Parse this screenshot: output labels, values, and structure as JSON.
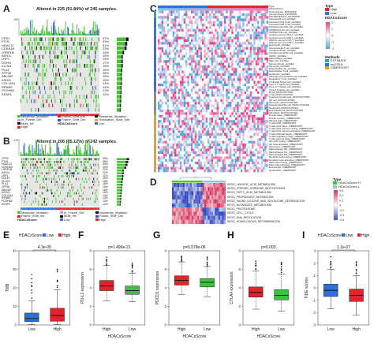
{
  "panels": {
    "A": {
      "letter": "A",
      "title": "Altered in 225 (91.84%) of 245 samples.",
      "ymax": "150",
      "genes": [
        "CPS1",
        "FTH1",
        "HDAC11",
        "CDKN1B",
        "LRRP1B",
        "ASH1L",
        "LRP1",
        "DOHH",
        "KLHL6",
        "PLA1",
        "ZFP36",
        "ABLIM2",
        "ASH2L",
        "COL11A1",
        "RENBP",
        "PCDHB2",
        "KEAP1"
      ],
      "pcts": [
        "37%",
        "33%",
        "31%",
        "23%",
        "19%",
        "19%",
        "19%",
        "17%",
        "16%",
        "16%",
        "16%",
        "15%",
        "15%",
        "14%",
        "14%",
        "13%",
        "12%"
      ],
      "legend": [
        "Missense_Mutation",
        "Frame_Shift_Ins",
        "Nonsense_Mutation",
        "In_Frame_Del",
        "Frame_Shift_Del",
        "Translation_Start_Site",
        "Multi_Hit",
        "HDACsScore",
        "Low",
        "High"
      ]
    },
    "B": {
      "letter": "B",
      "title": "Altered in 206 (85.12%) of 242 samples.",
      "ymax": "176",
      "genes": [
        "CPS1",
        "FTH1",
        "HDAC11",
        "CDKN1B",
        "LRRP1B",
        "ASH1L",
        "LRP1",
        "DOHH",
        "KLHL6",
        "PLA1",
        "ZFP36",
        "ABLIM2",
        "ASH2L",
        "COL11A1",
        "RENBP",
        "PCDHB2",
        "KEAP1"
      ],
      "pcts": [
        "39%",
        "36%",
        "34%",
        "30%",
        "22%",
        "22%",
        "21%",
        "20%",
        "18%",
        "18%",
        "16%",
        "16%",
        "15%",
        "14%",
        "14%",
        "13%",
        "12%"
      ],
      "legend": [
        "Missense_Mutation",
        "In_Frame_Del",
        "Nonsense_Mutation",
        "Frame_Shift_Ins",
        "Multi_Hit",
        "Frame_Shift_Del",
        "HDACsScore",
        "Low",
        "High"
      ]
    },
    "C": {
      "letter": "C",
      "legend_type": "Type",
      "legend_high": "High",
      "legend_low": "Low",
      "legend_score": "HDACsScore",
      "legend_methods": "Methods",
      "methods": [
        "ESTIMATE",
        "ssGSEA",
        "CIBERSORT"
      ],
      "scale": [
        "2",
        "1",
        "0",
        "-1",
        "-2"
      ],
      "rows": [
        "Type",
        "HDACsScore",
        "StromalScore_ESTIMATE",
        "ImmuneScore_ESTIMATE",
        "ESTIMATEScore_ESTIMATE",
        "Activated.B.cell_ssGSEA",
        "Activated.CD4.T.cell_ssGSEA",
        "Activated.CD8.T.cell_ssGSEA",
        "Activated.dendritic.cell_ssGSEA",
        "CD56bright.NK.cell_ssGSEA",
        "CD56dim.NK.cell_ssGSEA",
        "Central.memory.CD4.T_ssGSEA",
        "Central.memory.CD8.T_ssGSEA",
        "Effector.memory.CD4.T_ssGSEA",
        "Effector.memory.CD8.T_ssGSEA",
        "Eosinophil_ssGSEA",
        "Gamma.delta.T.cell_ssGSEA",
        "Immature.B.cell_ssGSEA",
        "Immature.dendritic.cell_ssGSEA",
        "MDSC_ssGSEA",
        "Macrophage_ssGSEA",
        "Mast.cell_ssGSEA",
        "Memory.B.cell_ssGSEA",
        "Monocyte_ssGSEA",
        "Natural.killer.cell_ssGSEA",
        "Natural.killer.T.cell_ssGSEA",
        "Neutrophil_ssGSEA",
        "Plasmacytoid.dendritic.cell_ssGSEA",
        "Regulatory.T.cell_ssGSEA",
        "T.follicular.helper.cell_ssGSEA",
        "Type.1.T.helper.cell_ssGSEA",
        "Type.17.T.helper.cell_ssGSEA",
        "Type.2.T.helper.cell_ssGSEA",
        "B.cell_MCPCOUNTER",
        "T.cell_MCPCOUNTER",
        "Cytotoxic.lymphocyte_MCPCOUNTER",
        "NK.cell_MCPCOUNTER",
        "Monocyte_MCPCOUNTER",
        "Myeloid.dendritic.cell_MCPCOUNTER",
        "Neutrophil_MCPCOUNTER",
        "Endothelial.cell_MCPCOUNTER",
        "Fibroblast_MCPCOUNTER",
        "B.cells.naive_CIBERSORT",
        "B.cells.memory_CIBERSORT",
        "Plasma.cells_CIBERSORT",
        "T.cells.CD8_CIBERSORT",
        "T.cells.CD4.naive_CIBERSORT",
        "T.cells.CD4.memory.resting_CIBERSORT",
        "T.cells.CD4.memory.activated_CIBERSORT",
        "T.cells.follicular.helper_CIBERSORT",
        "T.cells.regulatory.Tregs_CIBERSORT",
        "T.cells.gamma.delta_CIBERSORT",
        "NK.cells.resting_CIBERSORT",
        "NK.cells.activated_CIBERSORT",
        "Monocytes_CIBERSORT",
        "Macrophages.M0_CIBERSORT",
        "Macrophages.M1_CIBERSORT",
        "Macrophages.M2_CIBERSORT",
        "Dendritic.cells.resting_CIBERSORT",
        "Dendritic.cells.activated_CIBERSORT",
        "Mast.cells.resting_CIBERSORT",
        "Mast.cells.activated_CIBERSORT",
        "Eosinophils_CIBERSORT",
        "Neutrophils_CIBERSORT"
      ]
    },
    "D": {
      "letter": "D",
      "legend_type": "Type",
      "legend_items": [
        "HDACsScore.H",
        "HDACsScore.L"
      ],
      "scale": [
        "0.6",
        "0.4",
        "0.2",
        "0",
        "-0.2",
        "-0.4",
        "-0.6"
      ],
      "rows": [
        "KEGG_LINOLEIC_ACID_METABOLISM",
        "KEGG_STEROID_HORMONE_BIOSYNTHESIS",
        "KEGG_FATTY_ACID_METABOLISM",
        "KEGG_PROPANOATE_METABOLISM",
        "KEGG_VALINE_LEUCINE_AND_ISOLEUCINE_DEGRADATION",
        "KEGG_BUTANOATE_METABOLISM",
        "KEGG_PROTEASOME",
        "KEGG_CELL_CYCLE",
        "KEGG_DNA_REPLICATION",
        "KEGG_HOMOLOGOUS_RECOMBINATION"
      ]
    }
  },
  "colors": {
    "low": "#2f6fdb",
    "high": "#e0242a",
    "green": "#4cbf3a",
    "blue": "#2a5fc9",
    "black": "#111111",
    "heat_high": "#e8407a",
    "heat_low": "#4aa8e0"
  },
  "chart_data": [
    {
      "panel": "E",
      "type": "box",
      "title": "HDACsScore",
      "legend": [
        "Low",
        "High"
      ],
      "pvalue": "4.3e-05",
      "xlabel": "",
      "ylabel": "TMB",
      "categories": [
        "Low",
        "High"
      ],
      "ylim": [
        0,
        40
      ],
      "yticks": [
        "0",
        "10",
        "20",
        "30",
        "40"
      ],
      "series": [
        {
          "name": "Low",
          "median": 3.5,
          "q1": 1.8,
          "q3": 6.4,
          "whisker_low": 0.2,
          "whisker_high": 13
        },
        {
          "name": "High",
          "median": 5.0,
          "q1": 2.0,
          "q3": 9.0,
          "whisker_low": 0.2,
          "whisker_high": 19
        }
      ]
    },
    {
      "panel": "F",
      "type": "box",
      "title": "",
      "pvalue": "p=1.496e-21",
      "xlabel": "HDACsScore",
      "ylabel": "PD-L1 expression",
      "categories": [
        "High",
        "Low"
      ],
      "ylim": [
        0,
        8
      ],
      "yticks": [
        "0",
        "2",
        "4",
        "6",
        "8"
      ],
      "series": [
        {
          "name": "High",
          "median": 4.2,
          "q1": 3.7,
          "q3": 4.8,
          "whisker_low": 2.6,
          "whisker_high": 6.4
        },
        {
          "name": "Low",
          "median": 3.7,
          "q1": 3.3,
          "q3": 4.2,
          "whisker_low": 2.5,
          "whisker_high": 5.6
        }
      ]
    },
    {
      "panel": "G",
      "type": "box",
      "title": "",
      "pvalue": "p=5.578e-06",
      "xlabel": "HDACsScore",
      "ylabel": "PDCD1 expression",
      "categories": [
        "High",
        "Low"
      ],
      "ylim": [
        0,
        8
      ],
      "yticks": [
        "0",
        "2",
        "4",
        "6",
        "8"
      ],
      "series": [
        {
          "name": "High",
          "median": 4.8,
          "q1": 4.3,
          "q3": 5.3,
          "whisker_low": 3.3,
          "whisker_high": 6.8
        },
        {
          "name": "Low",
          "median": 4.6,
          "q1": 4.1,
          "q3": 5.0,
          "whisker_low": 3.0,
          "whisker_high": 6.3
        }
      ]
    },
    {
      "panel": "H",
      "type": "box",
      "title": "",
      "pvalue": "p=0.003",
      "xlabel": "HDACsScore",
      "ylabel": "CTLA4 expression",
      "categories": [
        "High",
        "Low"
      ],
      "ylim": [
        0,
        8
      ],
      "yticks": [
        "0",
        "2",
        "4",
        "6",
        "8"
      ],
      "series": [
        {
          "name": "High",
          "median": 3.5,
          "q1": 3.0,
          "q3": 4.1,
          "whisker_low": 1.7,
          "whisker_high": 5.8
        },
        {
          "name": "Low",
          "median": 3.2,
          "q1": 2.7,
          "q3": 3.8,
          "whisker_low": 1.5,
          "whisker_high": 5.5
        }
      ]
    },
    {
      "panel": "I",
      "type": "box",
      "title": "HDACsScore",
      "legend": [
        "Low",
        "High"
      ],
      "pvalue": "1.1e-07",
      "xlabel": "",
      "ylabel": "TIDE scores",
      "categories": [
        "Low",
        "High"
      ],
      "ylim": [
        -3,
        3
      ],
      "yticks": [
        "-3",
        "-2",
        "-1",
        "0",
        "1",
        "2",
        "3"
      ],
      "series": [
        {
          "name": "Low",
          "median": -0.2,
          "q1": -0.7,
          "q3": 0.3,
          "whisker_low": -1.7,
          "whisker_high": 1.5
        },
        {
          "name": "High",
          "median": -0.6,
          "q1": -1.1,
          "q3": -0.1,
          "whisker_low": -2.2,
          "whisker_high": 1.0
        }
      ]
    }
  ]
}
